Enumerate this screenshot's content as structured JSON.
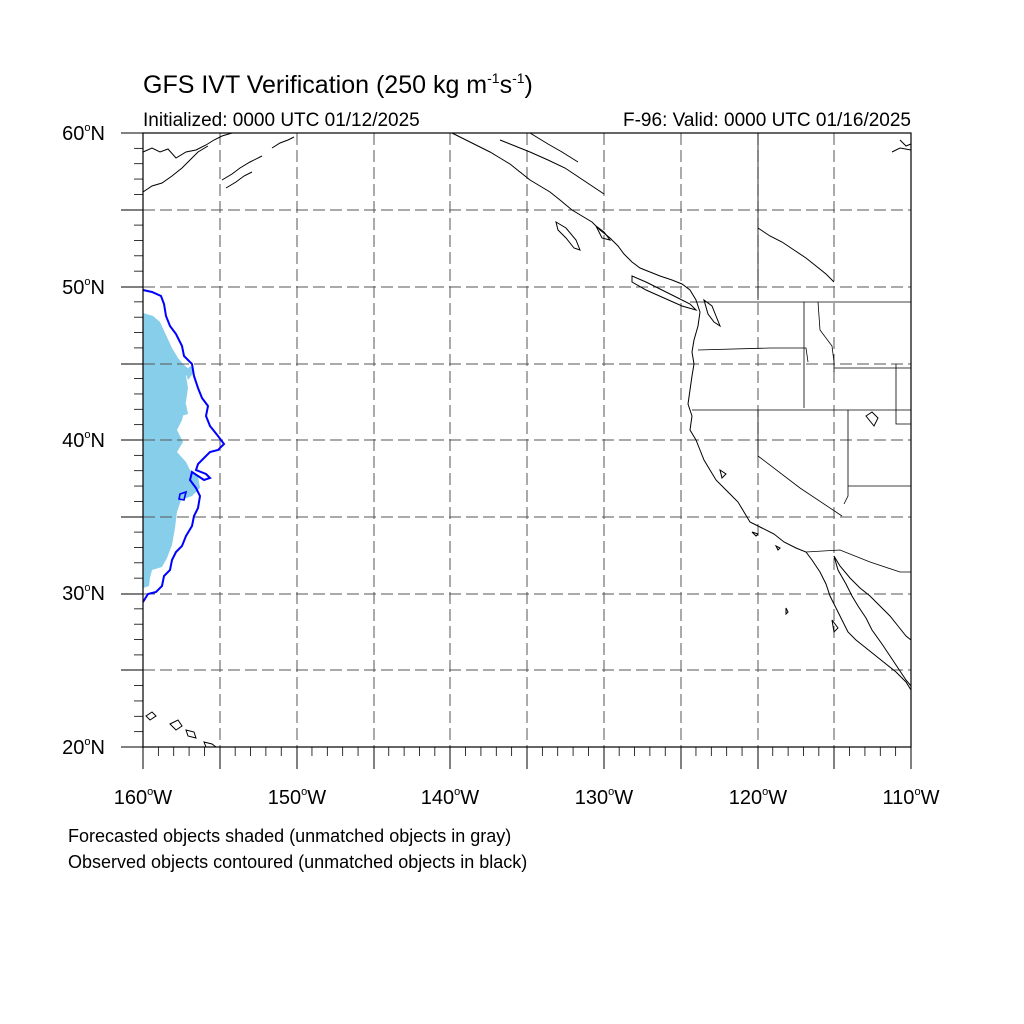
{
  "title": {
    "main": "GFS IVT Verification (250 kg m",
    "exp1": "-1",
    "s": "s",
    "exp2": "-1",
    "close": ")"
  },
  "subtitle": {
    "initialized": "Initialized: 0000 UTC 01/12/2025",
    "valid": "F-96: Valid: 0000 UTC 01/16/2025"
  },
  "axes": {
    "lat_labels": [
      {
        "num": "60",
        "hemi": "N"
      },
      {
        "num": "50",
        "hemi": "N"
      },
      {
        "num": "40",
        "hemi": "N"
      },
      {
        "num": "30",
        "hemi": "N"
      },
      {
        "num": "20",
        "hemi": "N"
      }
    ],
    "lon_labels": [
      {
        "num": "160",
        "hemi": "W"
      },
      {
        "num": "150",
        "hemi": "W"
      },
      {
        "num": "140",
        "hemi": "W"
      },
      {
        "num": "130",
        "hemi": "W"
      },
      {
        "num": "120",
        "hemi": "W"
      },
      {
        "num": "110",
        "hemi": "W"
      }
    ],
    "degree_symbol": "o",
    "lon_range": [
      -160,
      -110
    ],
    "lat_range": [
      20,
      60
    ],
    "grid_spacing_deg": 5,
    "grid": true
  },
  "captions": {
    "forecast": "Forecasted objects shaded (unmatched objects in gray)",
    "observed": "Observed objects contoured (unmatched objects in black)"
  },
  "colors": {
    "forecast_object_fill": "#87ceeb",
    "observed_object_contour": "#0000ff",
    "coastline": "#000000",
    "grid": "#555555"
  }
}
